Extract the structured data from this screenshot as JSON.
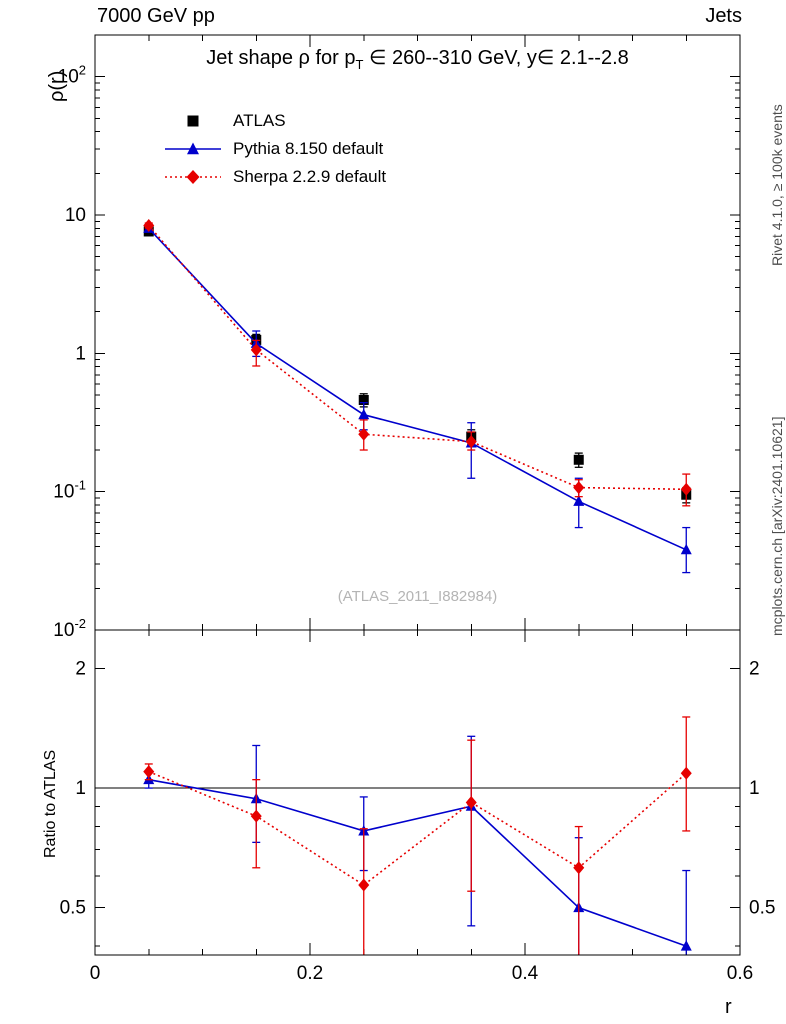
{
  "header": {
    "left_title": "7000 GeV pp",
    "right_title": "Jets"
  },
  "title": {
    "part1": "Jet shape ρ for p",
    "sub": "T",
    "part2": " ∈ 260--310 GeV, y∈ 2.1--2.8"
  },
  "axes": {
    "main_ylabel": "ρ(r)",
    "ratio_ylabel": "Ratio to ATLAS",
    "xlabel": "r"
  },
  "watermark": "(ATLAS_2011_I882984)",
  "side_notes": {
    "rivet": "Rivet 4.1.0, ≥ 100k events",
    "mcplots": "mcplots.cern.ch [arXiv:2401.10621]"
  },
  "chart_data": {
    "type": "scatter",
    "title": "Jet shape ρ for p_T ∈ 260--310 GeV, y ∈ 2.1--2.8",
    "xlabel": "r",
    "legend_position": "top-left",
    "x": [
      0.05,
      0.15,
      0.25,
      0.35,
      0.45,
      0.55
    ],
    "x_ticks": [
      0,
      0.2,
      0.4,
      0.6
    ],
    "x_minor_step": 0.05,
    "main": {
      "ylabel": "ρ(r)",
      "yscale": "log",
      "xlim": [
        0,
        0.6
      ],
      "ylim": [
        0.01,
        200
      ],
      "y_ticks": [
        0.01,
        0.1,
        1,
        10,
        100
      ],
      "series": [
        {
          "name": "ATLAS",
          "marker": "square",
          "line": "none",
          "color": "#000000",
          "y": [
            7.6,
            1.25,
            0.46,
            0.25,
            0.17,
            0.095
          ],
          "yerr_lo": [
            0.5,
            0.12,
            0.05,
            0.03,
            0.02,
            0.012
          ],
          "yerr_hi": [
            0.5,
            0.12,
            0.05,
            0.03,
            0.02,
            0.012
          ]
        },
        {
          "name": "Pythia 8.150 default",
          "marker": "triangle",
          "line": "solid",
          "color": "#0000cc",
          "y": [
            8.0,
            1.18,
            0.36,
            0.225,
            0.085,
            0.038
          ],
          "yerr_lo": [
            0.35,
            0.23,
            0.08,
            0.1,
            0.03,
            0.012
          ],
          "yerr_hi": [
            0.35,
            0.27,
            0.08,
            0.09,
            0.04,
            0.017
          ]
        },
        {
          "name": "Sherpa 2.2.9 default",
          "marker": "diamond",
          "line": "dotted",
          "color": "#e60000",
          "y": [
            8.4,
            1.06,
            0.26,
            0.23,
            0.107,
            0.104
          ],
          "yerr_lo": [
            0.35,
            0.25,
            0.06,
            0.03,
            0.015,
            0.025
          ],
          "yerr_hi": [
            0.35,
            0.18,
            0.07,
            0.04,
            0.015,
            0.03
          ]
        }
      ]
    },
    "ratio": {
      "ylabel": "Ratio to ATLAS",
      "yscale": "log",
      "ylim": [
        0.38,
        2.5
      ],
      "y_ticks": [
        0.5,
        1,
        2
      ],
      "reference": 1,
      "series": [
        {
          "name": "Pythia 8.150 default",
          "marker": "triangle",
          "line": "solid",
          "color": "#0000cc",
          "y": [
            1.05,
            0.94,
            0.78,
            0.9,
            0.5,
            0.4
          ],
          "yerr_lo": [
            0.05,
            0.21,
            0.16,
            0.45,
            0.15,
            0.05
          ],
          "yerr_hi": [
            0.05,
            0.34,
            0.17,
            0.45,
            0.25,
            0.22
          ]
        },
        {
          "name": "Sherpa 2.2.9 default",
          "marker": "diamond",
          "line": "dotted",
          "color": "#e60000",
          "y": [
            1.1,
            0.85,
            0.57,
            0.92,
            0.63,
            1.09
          ],
          "yerr_lo": [
            0.05,
            0.22,
            0.22,
            0.37,
            0.28,
            0.31
          ],
          "yerr_hi": [
            0.05,
            0.2,
            0.22,
            0.4,
            0.17,
            0.42
          ]
        }
      ]
    }
  }
}
